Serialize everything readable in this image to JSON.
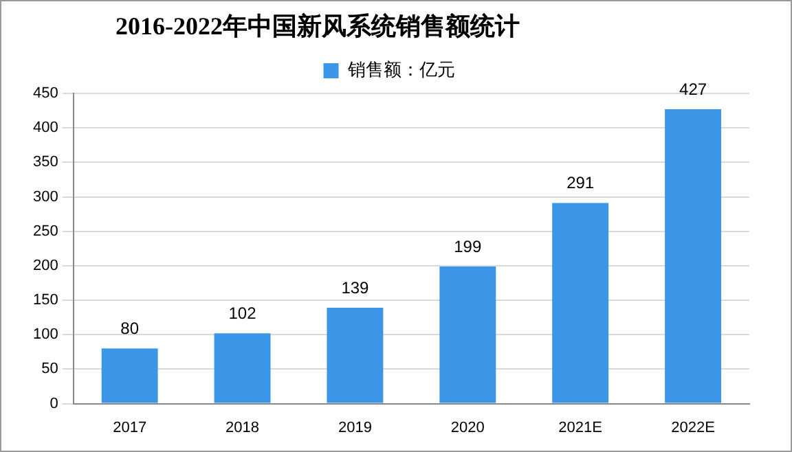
{
  "chart_data": {
    "type": "bar",
    "title": "2016-2022年中国新风系统销售额统计",
    "categories": [
      "2017",
      "2018",
      "2019",
      "2020",
      "2021E",
      "2022E"
    ],
    "series": [
      {
        "name": "销售额：亿元",
        "color": "#3c96e8",
        "values": [
          80,
          102,
          139,
          199,
          291,
          427
        ]
      }
    ],
    "ylim": [
      0,
      450
    ],
    "yticks": [
      0,
      50,
      100,
      150,
      200,
      250,
      300,
      350,
      400,
      450
    ],
    "grid": "y",
    "legend": "top",
    "data_labels": true
  }
}
